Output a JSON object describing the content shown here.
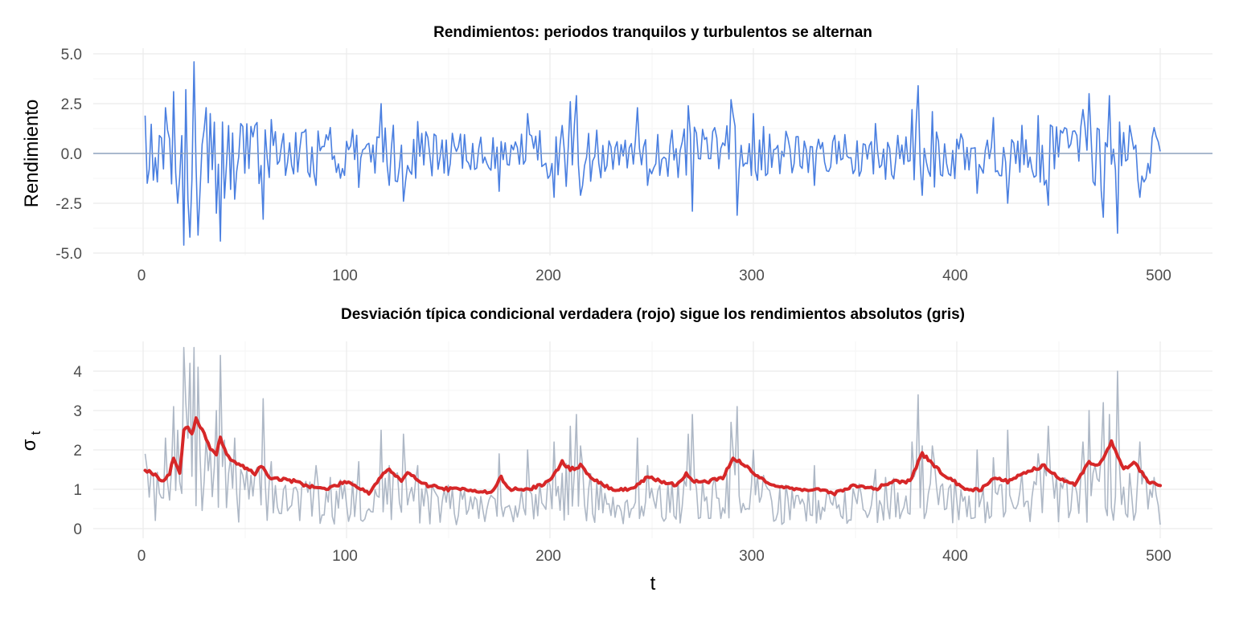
{
  "chart_data": [
    {
      "type": "line",
      "title": "Rendimientos: periodos tranquilos y turbulentos se alternan",
      "xlabel": "",
      "ylabel": "Rendimiento",
      "xlim": [
        1,
        500
      ],
      "ylim": [
        -5,
        5
      ],
      "x_ticks": [
        0,
        100,
        200,
        300,
        400,
        500
      ],
      "x_tick_labels": [
        "0",
        "100",
        "200",
        "300",
        "400",
        "500"
      ],
      "y_ticks": [
        -5,
        -2.5,
        0,
        2.5,
        5
      ],
      "y_tick_labels": [
        "-5.0",
        "-2.5",
        "0.0",
        "2.5",
        "5.0"
      ],
      "grid": true,
      "reference_line": {
        "y": 0,
        "color": "#8FA3BF"
      },
      "series": [
        {
          "color": "#4A7FE0",
          "x_range": [
            1,
            500
          ],
          "key_points": [
            [
              1,
              1.9
            ],
            [
              3,
              -0.8
            ],
            [
              8,
              0.9
            ],
            [
              11,
              2.3
            ],
            [
              15,
              3.1
            ],
            [
              17,
              -2.5
            ],
            [
              20,
              -4.6
            ],
            [
              21,
              3.2
            ],
            [
              23,
              -4.2
            ],
            [
              25,
              4.6
            ],
            [
              27,
              -4.1
            ],
            [
              30,
              1.2
            ],
            [
              33,
              2.0
            ],
            [
              36,
              -3.0
            ],
            [
              38,
              -4.4
            ],
            [
              42,
              1.4
            ],
            [
              45,
              -2.3
            ],
            [
              48,
              1.5
            ],
            [
              55,
              1.4
            ],
            [
              59,
              -3.3
            ],
            [
              63,
              1.7
            ],
            [
              70,
              -1.1
            ],
            [
              80,
              1.2
            ],
            [
              85,
              -1.6
            ],
            [
              92,
              1.3
            ],
            [
              99,
              -1.1
            ],
            [
              103,
              1.2
            ],
            [
              106,
              -1.7
            ],
            [
              117,
              2.5
            ],
            [
              121,
              -1.6
            ],
            [
              128,
              -2.4
            ],
            [
              135,
              1.6
            ],
            [
              150,
              -1.1
            ],
            [
              175,
              -1.9
            ],
            [
              189,
              2.0
            ],
            [
              200,
              -1.1
            ],
            [
              202,
              -2.2
            ],
            [
              210,
              2.6
            ],
            [
              213,
              2.9
            ],
            [
              215,
              -2.1
            ],
            [
              243,
              2.3
            ],
            [
              248,
              -1.6
            ],
            [
              268,
              2.4
            ],
            [
              270,
              -2.9
            ],
            [
              289,
              2.7
            ],
            [
              292,
              -3.1
            ],
            [
              300,
              2.0
            ],
            [
              330,
              -1.6
            ],
            [
              360,
              1.5
            ],
            [
              365,
              -1.3
            ],
            [
              378,
              2.2
            ],
            [
              381,
              3.4
            ],
            [
              383,
              -2.1
            ],
            [
              388,
              2.1
            ],
            [
              410,
              -2.0
            ],
            [
              418,
              1.8
            ],
            [
              425,
              -2.5
            ],
            [
              440,
              1.9
            ],
            [
              445,
              -2.6
            ],
            [
              462,
              2.2
            ],
            [
              465,
              3.0
            ],
            [
              468,
              -1.6
            ],
            [
              472,
              -3.2
            ],
            [
              475,
              2.9
            ],
            [
              479,
              -4.0
            ],
            [
              485,
              1.4
            ],
            [
              490,
              -2.2
            ],
            [
              497,
              1.3
            ],
            [
              500,
              0.1
            ]
          ]
        }
      ]
    },
    {
      "type": "line",
      "title": "Desviación típica condicional verdadera (rojo) sigue los rendimientos absolutos (gris)",
      "xlabel": "t",
      "ylabel": "σt",
      "ylabel_main": "σ",
      "ylabel_sub": "t",
      "xlim": [
        1,
        500
      ],
      "ylim": [
        0,
        4.6
      ],
      "x_ticks": [
        0,
        100,
        200,
        300,
        400,
        500
      ],
      "x_tick_labels": [
        "0",
        "100",
        "200",
        "300",
        "400",
        "500"
      ],
      "y_ticks": [
        0,
        1,
        2,
        3,
        4
      ],
      "y_tick_labels": [
        "0",
        "1",
        "2",
        "3",
        "4"
      ],
      "grid": true,
      "series": [
        {
          "color": "#AEB8C6",
          "x_range": [
            1,
            500
          ],
          "key_points": [
            [
              1,
              1.9
            ],
            [
              4,
              0.3
            ],
            [
              9,
              2.3
            ],
            [
              15,
              3.1
            ],
            [
              18,
              0.4
            ],
            [
              20,
              4.6
            ],
            [
              22,
              0.5
            ],
            [
              25,
              4.6
            ],
            [
              28,
              0.8
            ],
            [
              31,
              2.0
            ],
            [
              38,
              4.4
            ],
            [
              45,
              2.3
            ],
            [
              59,
              3.3
            ],
            [
              99,
              1.1
            ],
            [
              117,
              2.5
            ],
            [
              128,
              2.4
            ],
            [
              189,
              2.0
            ],
            [
              213,
              2.9
            ],
            [
              243,
              2.3
            ],
            [
              270,
              2.9
            ],
            [
              292,
              3.1
            ],
            [
              381,
              3.4
            ],
            [
              425,
              2.5
            ],
            [
              445,
              2.6
            ],
            [
              465,
              3.0
            ],
            [
              475,
              4.0
            ],
            [
              490,
              2.2
            ],
            [
              500,
              0.1
            ]
          ]
        },
        {
          "color": "#D62728",
          "x_range": [
            1,
            500
          ],
          "key_points": [
            [
              1,
              1.5
            ],
            [
              5,
              1.4
            ],
            [
              10,
              1.2
            ],
            [
              13,
              1.4
            ],
            [
              15,
              1.8
            ],
            [
              18,
              1.4
            ],
            [
              20,
              2.5
            ],
            [
              22,
              2.6
            ],
            [
              24,
              2.4
            ],
            [
              26,
              2.8
            ],
            [
              28,
              2.6
            ],
            [
              30,
              2.4
            ],
            [
              33,
              2.0
            ],
            [
              36,
              1.9
            ],
            [
              38,
              2.3
            ],
            [
              42,
              1.8
            ],
            [
              48,
              1.6
            ],
            [
              55,
              1.4
            ],
            [
              58,
              1.6
            ],
            [
              62,
              1.3
            ],
            [
              75,
              1.2
            ],
            [
              80,
              1.1
            ],
            [
              90,
              1.0
            ],
            [
              100,
              1.2
            ],
            [
              108,
              1.0
            ],
            [
              111,
              0.9
            ],
            [
              118,
              1.4
            ],
            [
              121,
              1.5
            ],
            [
              127,
              1.2
            ],
            [
              130,
              1.4
            ],
            [
              140,
              1.1
            ],
            [
              150,
              1.0
            ],
            [
              160,
              1.0
            ],
            [
              171,
              0.9
            ],
            [
              176,
              1.3
            ],
            [
              180,
              1.0
            ],
            [
              190,
              1.0
            ],
            [
              200,
              1.2
            ],
            [
              206,
              1.7
            ],
            [
              210,
              1.5
            ],
            [
              215,
              1.6
            ],
            [
              220,
              1.3
            ],
            [
              230,
              1.0
            ],
            [
              240,
              1.0
            ],
            [
              248,
              1.3
            ],
            [
              255,
              1.2
            ],
            [
              262,
              1.1
            ],
            [
              267,
              1.4
            ],
            [
              270,
              1.2
            ],
            [
              278,
              1.2
            ],
            [
              285,
              1.3
            ],
            [
              290,
              1.8
            ],
            [
              296,
              1.6
            ],
            [
              300,
              1.4
            ],
            [
              310,
              1.1
            ],
            [
              320,
              1.0
            ],
            [
              330,
              1.0
            ],
            [
              340,
              0.9
            ],
            [
              350,
              1.1
            ],
            [
              360,
              1.0
            ],
            [
              368,
              1.2
            ],
            [
              377,
              1.2
            ],
            [
              383,
              1.9
            ],
            [
              387,
              1.7
            ],
            [
              395,
              1.3
            ],
            [
              405,
              1.0
            ],
            [
              412,
              1.0
            ],
            [
              418,
              1.3
            ],
            [
              425,
              1.2
            ],
            [
              432,
              1.4
            ],
            [
              443,
              1.6
            ],
            [
              450,
              1.3
            ],
            [
              458,
              1.1
            ],
            [
              465,
              1.7
            ],
            [
              470,
              1.6
            ],
            [
              476,
              2.2
            ],
            [
              482,
              1.5
            ],
            [
              487,
              1.7
            ],
            [
              494,
              1.2
            ],
            [
              500,
              1.1
            ]
          ]
        }
      ]
    }
  ]
}
